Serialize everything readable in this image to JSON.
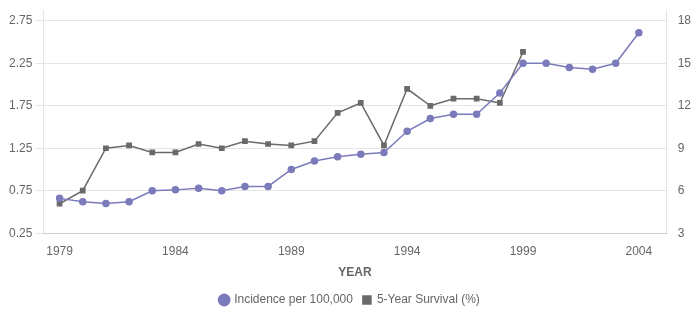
{
  "chart_data": {
    "type": "line",
    "xlabel": "YEAR",
    "xlim": [
      1978.3,
      2005.2
    ],
    "xticks": [
      1979,
      1984,
      1989,
      1994,
      1999,
      2004
    ],
    "ylim": [
      0.25,
      2.875
    ],
    "yticks": [
      0.25,
      0.75,
      1.25,
      1.75,
      2.25,
      2.75
    ],
    "y2lim": [
      3.0,
      18.75
    ],
    "y2ticks": [
      3,
      6,
      9,
      12,
      15,
      18
    ],
    "grid": true,
    "legend": "bottom",
    "series": [
      {
        "name": "Incidence per 100,000",
        "color": "#7b7bbc",
        "marker": "circle",
        "axis": "y",
        "x": [
          1979,
          1980,
          1981,
          1982,
          1983,
          1984,
          1985,
          1986,
          1987,
          1988,
          1989,
          1990,
          1991,
          1992,
          1993,
          1994,
          1995,
          1996,
          1997,
          1998,
          1999,
          2000,
          2001,
          2002,
          2003,
          2004
        ],
        "values": [
          0.66,
          0.62,
          0.6,
          0.62,
          0.75,
          0.76,
          0.78,
          0.75,
          0.8,
          0.8,
          1.0,
          1.1,
          1.15,
          1.18,
          1.2,
          1.45,
          1.6,
          1.65,
          1.65,
          1.9,
          2.25,
          2.25,
          2.2,
          2.18,
          2.25,
          2.61
        ]
      },
      {
        "name": "5-Year Survival (%)",
        "color": "#6a6a6a",
        "marker": "square",
        "axis": "y2",
        "x": [
          1979,
          1980,
          1981,
          1982,
          1983,
          1984,
          1985,
          1986,
          1987,
          1988,
          1989,
          1990,
          1991,
          1992,
          1993,
          1994,
          1995,
          1996,
          1997,
          1998,
          1999
        ],
        "values": [
          5.08,
          6.0,
          9.0,
          9.2,
          8.7,
          8.7,
          9.3,
          9.0,
          9.5,
          9.3,
          9.2,
          9.5,
          11.5,
          12.2,
          9.2,
          13.2,
          12.0,
          12.5,
          12.5,
          12.2,
          15.8
        ]
      }
    ]
  }
}
